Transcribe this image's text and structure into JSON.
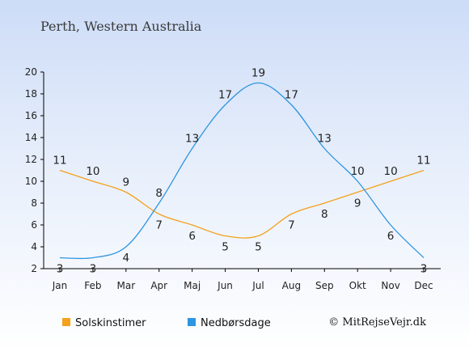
{
  "chart_data": {
    "type": "line",
    "title": "Perth, Western Australia",
    "categories": [
      "Jan",
      "Feb",
      "Mar",
      "Apr",
      "Maj",
      "Jun",
      "Jul",
      "Aug",
      "Sep",
      "Okt",
      "Nov",
      "Dec"
    ],
    "series": [
      {
        "name": "Solskinstimer",
        "color": "#f4a11c",
        "values": [
          11,
          10,
          9,
          7,
          6,
          5,
          5,
          7,
          8,
          9,
          10,
          11
        ]
      },
      {
        "name": "Nedbørsdage",
        "color": "#2f95e0",
        "values": [
          3,
          3,
          4,
          8,
          13,
          17,
          19,
          17,
          13,
          10,
          6,
          3
        ]
      }
    ],
    "yticks": [
      2,
      4,
      6,
      8,
      10,
      12,
      14,
      16,
      18,
      20
    ],
    "ylim": [
      2,
      20
    ],
    "grid": false,
    "legend_position": "bottom-left",
    "credit": "© MitRejseVejr.dk"
  }
}
